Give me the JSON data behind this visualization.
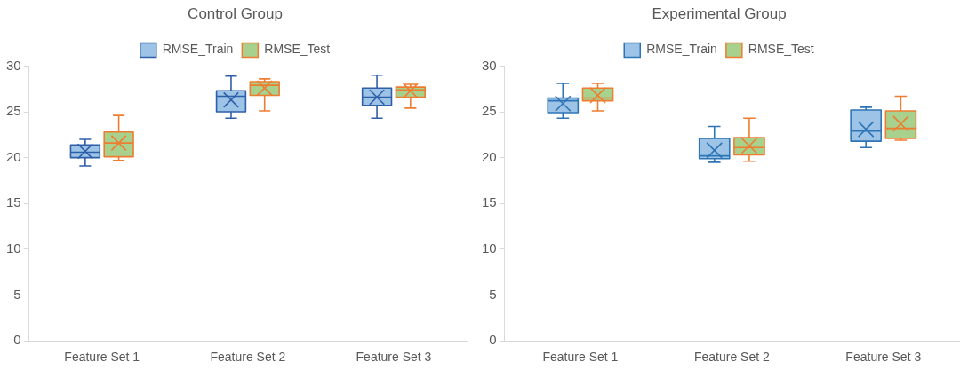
{
  "chart_data": [
    {
      "type": "box",
      "title": "Control Group",
      "categories": [
        "Feature Set 1",
        "Feature Set 2",
        "Feature Set 3"
      ],
      "series": [
        {
          "name": "RMSE_Train",
          "color": "#9dc3e6",
          "boxes": [
            {
              "low": 19.1,
              "q1": 20.0,
              "median": 20.6,
              "q3": 21.4,
              "high": 22.0,
              "mean": 20.7
            },
            {
              "low": 24.3,
              "q1": 25.0,
              "median": 26.7,
              "q3": 27.3,
              "high": 28.9,
              "mean": 26.3
            },
            {
              "low": 24.3,
              "q1": 25.7,
              "median": 26.6,
              "q3": 27.6,
              "high": 29.0,
              "mean": 26.6
            }
          ]
        },
        {
          "name": "RMSE_Test",
          "color": "#a9d18e",
          "boxes": [
            {
              "low": 19.7,
              "q1": 20.1,
              "median": 21.6,
              "q3": 22.8,
              "high": 24.6,
              "mean": 21.6
            },
            {
              "low": 25.1,
              "q1": 26.8,
              "median": 27.9,
              "q3": 28.3,
              "high": 28.6,
              "mean": 27.6
            },
            {
              "low": 25.4,
              "q1": 26.6,
              "median": 27.4,
              "q3": 27.7,
              "high": 28.0,
              "mean": 27.3
            }
          ]
        }
      ],
      "ylim": [
        0,
        30
      ],
      "yticks": [
        0,
        5,
        10,
        15,
        20,
        25,
        30
      ],
      "legend": "top",
      "marker": "cross"
    },
    {
      "type": "box",
      "title": "Experimental Group",
      "categories": [
        "Feature Set 1",
        "Feature Set 2",
        "Feature Set 3"
      ],
      "series": [
        {
          "name": "RMSE_Train",
          "color": "#9dc3e6",
          "boxes": [
            {
              "low": 24.3,
              "q1": 24.9,
              "median": 26.2,
              "q3": 26.5,
              "high": 28.1,
              "mean": 25.9
            },
            {
              "low": 19.5,
              "q1": 19.9,
              "median": 20.2,
              "q3": 22.1,
              "high": 23.4,
              "mean": 20.8
            },
            {
              "low": 21.1,
              "q1": 21.8,
              "median": 22.9,
              "q3": 25.2,
              "high": 25.5,
              "mean": 23.1
            }
          ]
        },
        {
          "name": "RMSE_Test",
          "color": "#a9d18e",
          "boxes": [
            {
              "low": 25.1,
              "q1": 26.2,
              "median": 26.5,
              "q3": 27.6,
              "high": 28.1,
              "mean": 26.8
            },
            {
              "low": 19.6,
              "q1": 20.3,
              "median": 21.1,
              "q3": 22.2,
              "high": 24.3,
              "mean": 21.3
            },
            {
              "low": 21.9,
              "q1": 22.1,
              "median": 23.2,
              "q3": 25.1,
              "high": 26.7,
              "mean": 23.7
            }
          ]
        }
      ],
      "ylim": [
        0,
        30
      ],
      "yticks": [
        0,
        5,
        10,
        15,
        20,
        25,
        30
      ],
      "legend": "top",
      "marker": "cross"
    }
  ]
}
